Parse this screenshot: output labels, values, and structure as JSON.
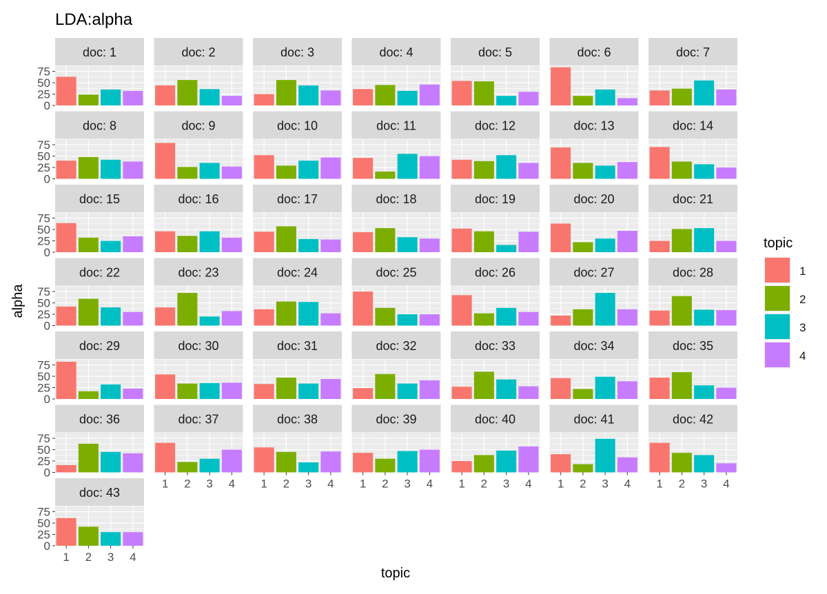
{
  "chart_data": {
    "type": "bar",
    "title": "LDA:alpha",
    "xlabel": "topic",
    "ylabel": "alpha",
    "ylim": [
      0,
      88
    ],
    "y_ticks": [
      0,
      25,
      50,
      75
    ],
    "categories": [
      "1",
      "2",
      "3",
      "4"
    ],
    "facet_prefix": "doc: ",
    "legend": {
      "title": "topic",
      "position": "right",
      "entries": [
        "1",
        "2",
        "3",
        "4"
      ],
      "colors": [
        "#F8766D",
        "#7CAE00",
        "#00BFC4",
        "#C77CFF"
      ]
    },
    "grid": true,
    "panel_background": "#EBEBEB",
    "strip_background": "#D9D9D9",
    "panels": [
      {
        "doc": "1",
        "values": [
          63,
          24,
          35,
          32
        ]
      },
      {
        "doc": "2",
        "values": [
          44,
          56,
          36,
          21
        ]
      },
      {
        "doc": "3",
        "values": [
          25,
          56,
          44,
          33
        ]
      },
      {
        "doc": "4",
        "values": [
          36,
          45,
          32,
          46
        ]
      },
      {
        "doc": "5",
        "values": [
          54,
          53,
          21,
          30
        ]
      },
      {
        "doc": "6",
        "values": [
          84,
          21,
          35,
          16
        ]
      },
      {
        "doc": "7",
        "values": [
          33,
          37,
          55,
          35
        ]
      },
      {
        "doc": "8",
        "values": [
          40,
          48,
          42,
          38
        ]
      },
      {
        "doc": "9",
        "values": [
          79,
          26,
          35,
          27
        ]
      },
      {
        "doc": "10",
        "values": [
          52,
          29,
          40,
          47
        ]
      },
      {
        "doc": "11",
        "values": [
          46,
          16,
          55,
          50
        ]
      },
      {
        "doc": "12",
        "values": [
          42,
          39,
          52,
          35
        ]
      },
      {
        "doc": "13",
        "values": [
          69,
          35,
          29,
          37
        ]
      },
      {
        "doc": "14",
        "values": [
          70,
          38,
          32,
          25
        ]
      },
      {
        "doc": "15",
        "values": [
          64,
          32,
          25,
          35
        ]
      },
      {
        "doc": "16",
        "values": [
          46,
          36,
          46,
          32
        ]
      },
      {
        "doc": "17",
        "values": [
          45,
          57,
          29,
          28
        ]
      },
      {
        "doc": "18",
        "values": [
          44,
          53,
          33,
          30
        ]
      },
      {
        "doc": "19",
        "values": [
          52,
          46,
          16,
          45
        ]
      },
      {
        "doc": "20",
        "values": [
          63,
          22,
          30,
          47
        ]
      },
      {
        "doc": "21",
        "values": [
          25,
          51,
          53,
          25
        ]
      },
      {
        "doc": "22",
        "values": [
          42,
          59,
          40,
          30
        ]
      },
      {
        "doc": "23",
        "values": [
          40,
          72,
          20,
          32
        ]
      },
      {
        "doc": "24",
        "values": [
          36,
          53,
          52,
          27
        ]
      },
      {
        "doc": "25",
        "values": [
          75,
          39,
          25,
          25
        ]
      },
      {
        "doc": "26",
        "values": [
          67,
          27,
          39,
          30
        ]
      },
      {
        "doc": "27",
        "values": [
          22,
          36,
          72,
          36
        ]
      },
      {
        "doc": "28",
        "values": [
          33,
          65,
          35,
          34
        ]
      },
      {
        "doc": "29",
        "values": [
          82,
          17,
          32,
          23
        ]
      },
      {
        "doc": "30",
        "values": [
          54,
          34,
          35,
          36
        ]
      },
      {
        "doc": "31",
        "values": [
          33,
          47,
          34,
          44
        ]
      },
      {
        "doc": "32",
        "values": [
          24,
          55,
          34,
          41
        ]
      },
      {
        "doc": "33",
        "values": [
          27,
          60,
          43,
          28
        ]
      },
      {
        "doc": "34",
        "values": [
          46,
          22,
          49,
          39
        ]
      },
      {
        "doc": "35",
        "values": [
          47,
          59,
          30,
          25
        ]
      },
      {
        "doc": "36",
        "values": [
          16,
          63,
          45,
          42
        ]
      },
      {
        "doc": "37",
        "values": [
          65,
          23,
          30,
          50
        ]
      },
      {
        "doc": "38",
        "values": [
          55,
          45,
          22,
          46
        ]
      },
      {
        "doc": "39",
        "values": [
          43,
          30,
          47,
          50
        ]
      },
      {
        "doc": "40",
        "values": [
          25,
          38,
          48,
          57
        ]
      },
      {
        "doc": "41",
        "values": [
          40,
          18,
          74,
          33
        ]
      },
      {
        "doc": "42",
        "values": [
          65,
          43,
          38,
          20
        ]
      },
      {
        "doc": "43",
        "values": [
          61,
          42,
          30,
          30
        ]
      }
    ]
  }
}
